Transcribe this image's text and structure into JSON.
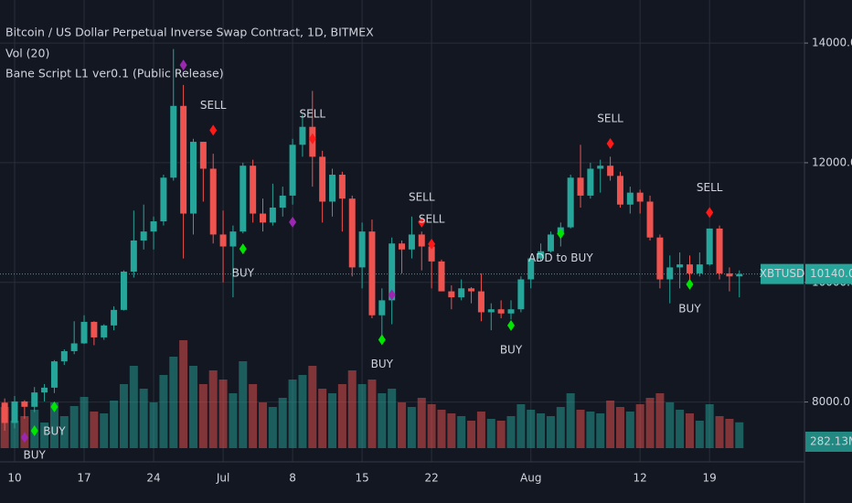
{
  "chart_data": {
    "type": "candlestick",
    "title": "Bitcoin / US Dollar Perpetual Inverse Swap Contract, 1D, BITMEX",
    "indicators": [
      "Vol (20)",
      "Bane Script L1 ver0.1 (Public Release)"
    ],
    "categories": [
      null,
      "10",
      null,
      null,
      null,
      null,
      null,
      null,
      "17",
      null,
      null,
      null,
      null,
      null,
      null,
      "24",
      null,
      null,
      null,
      null,
      null,
      null,
      "Jul",
      null,
      null,
      null,
      null,
      null,
      null,
      "8",
      null,
      null,
      null,
      null,
      null,
      null,
      "15",
      null,
      null,
      null,
      null,
      null,
      null,
      "22",
      null,
      null,
      null,
      null,
      null,
      null,
      null,
      null,
      null,
      "Aug",
      null,
      null,
      null,
      null,
      null,
      null,
      null,
      null,
      null,
      null,
      "12",
      null,
      null,
      null,
      null,
      null,
      null,
      "19",
      null,
      null,
      null
    ],
    "open": [
      7990,
      7650,
      8010,
      7920,
      8160,
      8240,
      8680,
      8850,
      8980,
      9340,
      9080,
      9280,
      9540,
      10180,
      10700,
      10850,
      11020,
      11750,
      12950,
      11150,
      12350,
      11900,
      10800,
      10600,
      10850,
      11950,
      11150,
      11000,
      11250,
      11450,
      12300,
      12600,
      12100,
      11350,
      11800,
      11400,
      10250,
      10850,
      9450,
      9700,
      10650,
      10550,
      10800,
      10600,
      10350,
      9850,
      9750,
      9900,
      9850,
      9500,
      9550,
      9480,
      9550,
      10050,
      10400,
      10520,
      10800,
      10920,
      11750,
      11450,
      11900,
      11950,
      11780,
      11300,
      11500,
      11350,
      10750,
      10050,
      10250,
      10300,
      10150,
      10300,
      10900,
      10150,
      10100
    ],
    "high": [
      8060,
      8100,
      8030,
      8250,
      8300,
      8700,
      8880,
      9350,
      9450,
      9350,
      9300,
      9600,
      10200,
      11200,
      11300,
      11100,
      11800,
      13900,
      13300,
      12400,
      12350,
      12150,
      11200,
      10950,
      12000,
      12050,
      11400,
      11650,
      11600,
      12400,
      12800,
      13200,
      12200,
      11900,
      11850,
      11450,
      11000,
      11050,
      9900,
      10750,
      10700,
      11100,
      10850,
      10650,
      10380,
      9950,
      10050,
      9920,
      10150,
      9650,
      9700,
      9700,
      10100,
      10450,
      10650,
      10850,
      11000,
      11800,
      12300,
      12000,
      12050,
      12100,
      11850,
      11600,
      11550,
      11450,
      10800,
      10450,
      10500,
      10450,
      10500,
      10900,
      10950,
      10250,
      10200
    ],
    "low": [
      7520,
      7560,
      7720,
      7830,
      8010,
      8150,
      8620,
      8800,
      8970,
      8950,
      9040,
      9200,
      9530,
      10080,
      10550,
      10550,
      10950,
      11700,
      10400,
      10800,
      11350,
      10650,
      10000,
      9750,
      10820,
      11000,
      10850,
      10950,
      11100,
      11300,
      12100,
      11600,
      11000,
      11100,
      10850,
      10100,
      9900,
      9400,
      9100,
      9300,
      10150,
      10400,
      10200,
      9900,
      9850,
      9550,
      9700,
      9650,
      9350,
      9200,
      9400,
      9380,
      9500,
      9900,
      10350,
      10500,
      10600,
      10900,
      11250,
      11400,
      11500,
      11700,
      11250,
      11150,
      11150,
      10700,
      9900,
      9650,
      9900,
      9950,
      10100,
      10280,
      10050,
      9850,
      9750
    ],
    "close": [
      7650,
      8010,
      7920,
      8160,
      8240,
      8680,
      8850,
      8980,
      9340,
      9080,
      9280,
      9540,
      10180,
      10700,
      10850,
      11020,
      11750,
      12950,
      11150,
      12350,
      11900,
      10800,
      10600,
      10850,
      11950,
      11150,
      11000,
      11250,
      11450,
      12300,
      12600,
      12100,
      11350,
      11800,
      11400,
      10250,
      10850,
      9450,
      9700,
      10650,
      10550,
      10800,
      10600,
      10350,
      9850,
      9750,
      9900,
      9850,
      9500,
      9550,
      9480,
      9550,
      10050,
      10400,
      10520,
      10800,
      10920,
      11750,
      11450,
      11900,
      11950,
      11780,
      11300,
      11500,
      11350,
      10750,
      10050,
      10250,
      10300,
      10150,
      10300,
      10900,
      10150,
      10100,
      10140
    ],
    "volume": [
      450,
      300,
      350,
      420,
      280,
      500,
      350,
      460,
      560,
      400,
      380,
      520,
      700,
      900,
      650,
      500,
      800,
      1000,
      1180,
      900,
      700,
      850,
      750,
      600,
      950,
      700,
      500,
      450,
      550,
      750,
      800,
      900,
      650,
      600,
      700,
      850,
      700,
      750,
      600,
      650,
      500,
      450,
      550,
      480,
      420,
      380,
      350,
      300,
      400,
      320,
      300,
      350,
      480,
      420,
      380,
      350,
      450,
      600,
      420,
      400,
      380,
      520,
      450,
      400,
      480,
      550,
      600,
      500,
      420,
      380,
      300,
      480,
      350,
      320,
      282.13
    ],
    "volume_ylim": [
      0,
      4000
    ],
    "volume_tag": "282.13M",
    "up_color": "#26a69a",
    "down_color": "#ef5350",
    "ylim": [
      7000,
      14720
    ],
    "yticks": [
      {
        "value": 8000,
        "label": "8000.0"
      },
      {
        "value": 10000,
        "label": "10000.0"
      },
      {
        "value": 12000,
        "label": "12000.0"
      },
      {
        "value": 14000,
        "label": "14000.0"
      }
    ],
    "grid": true,
    "price_tag": {
      "symbol": "XBTUSD",
      "value": 10140,
      "label": "10140.0"
    },
    "signals": [
      {
        "index": 3,
        "value": 7520,
        "label": "BUY",
        "color": "#00e600"
      },
      {
        "index": 5,
        "value": 7920,
        "label": "BUY",
        "color": "#00e600"
      },
      {
        "index": 2,
        "value": 7408,
        "color": "#9c27b0"
      },
      {
        "index": 18,
        "value": 13632,
        "color": "#9c27b0"
      },
      {
        "index": 21,
        "value": 12544,
        "label": "SELL",
        "color": "#ff1a1a"
      },
      {
        "index": 24,
        "value": 10560,
        "label": "BUY",
        "color": "#00e600"
      },
      {
        "index": 29,
        "value": 11008,
        "color": "#9c27b0"
      },
      {
        "index": 31,
        "value": 12400,
        "label": "SELL",
        "color": "#ff1a1a"
      },
      {
        "index": 38,
        "value": 9040,
        "label": "BUY",
        "color": "#00e600"
      },
      {
        "index": 39,
        "value": 9792,
        "color": "#9c27b0"
      },
      {
        "index": 42,
        "value": 11008,
        "label": "SELL",
        "color": "#ff1a1a"
      },
      {
        "index": 43,
        "value": 10640,
        "label": "SELL",
        "color": "#ff1a1a"
      },
      {
        "index": 51,
        "value": 9280,
        "label": "BUY",
        "color": "#00e600"
      },
      {
        "index": 56,
        "value": 10816,
        "label": "ADD to BUY",
        "color": "#00e600"
      },
      {
        "index": 61,
        "value": 12320,
        "label": "SELL",
        "color": "#ff1a1a"
      },
      {
        "index": 69,
        "value": 9968,
        "label": "BUY",
        "color": "#00e600"
      },
      {
        "index": 71,
        "value": 11168,
        "label": "SELL",
        "color": "#ff1a1a"
      }
    ]
  }
}
